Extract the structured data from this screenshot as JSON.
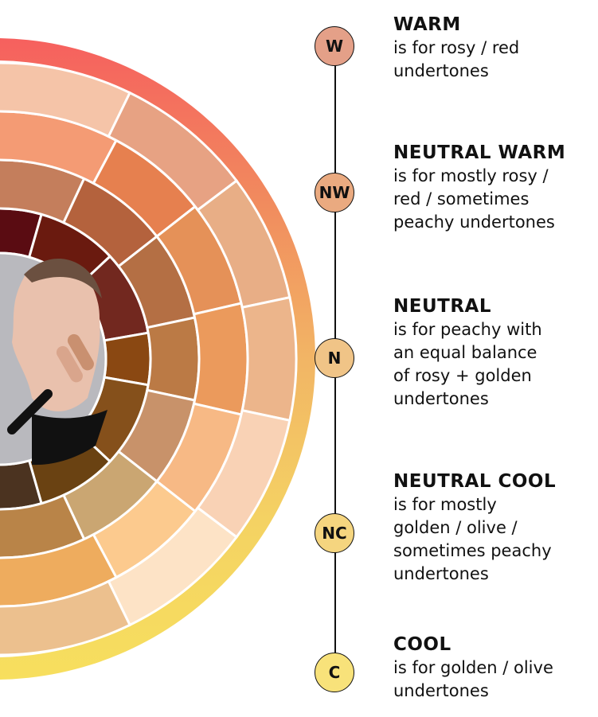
{
  "wheel": {
    "outer_ring_gradient": [
      "#f6605e",
      "#f18a5e",
      "#f2b565",
      "#f4d263",
      "#f7df5e"
    ],
    "photo_background": "#b9b9be",
    "rings": [
      [
        "#5a0c12",
        "#6a1a0f",
        "#72281f",
        "#8a4812",
        "#85501b",
        "#6a4212",
        "#4b3320"
      ],
      [
        "#c47e5c",
        "#b4623d",
        "#b46f44",
        "#bb7a45",
        "#c8926a",
        "#caa672",
        "#b98448"
      ],
      [
        "#f49b74",
        "#e6804f",
        "#e59158",
        "#eb9a5c",
        "#f7b985",
        "#fcca8e",
        "#eeac5e"
      ],
      [
        "#f5c4a8",
        "#e7a283",
        "#e8ae86",
        "#ecb58b",
        "#f9d2b5",
        "#fde3c6",
        "#ecc08e"
      ]
    ]
  },
  "undertones": [
    {
      "abbr": "W",
      "title": "WARM",
      "lines": [
        "is for rosy / red",
        "undertones"
      ],
      "color": "#e4a088"
    },
    {
      "abbr": "NW",
      "title": "NEUTRAL WARM",
      "lines": [
        "is for mostly rosy /",
        "red / sometimes",
        "peachy undertones"
      ],
      "color": "#eaaa80"
    },
    {
      "abbr": "N",
      "title": "NEUTRAL",
      "lines": [
        "is for peachy with",
        "an equal balance",
        "of rosy + golden",
        "undertones"
      ],
      "color": "#f0c487"
    },
    {
      "abbr": "NC",
      "title": "NEUTRAL COOL",
      "lines": [
        "is for mostly",
        "golden / olive /",
        "sometimes peachy",
        "undertones"
      ],
      "color": "#f5d57f"
    },
    {
      "abbr": "C",
      "title": "COOL",
      "lines": [
        "is for golden / olive",
        "undertones"
      ],
      "color": "#f8e27a"
    }
  ]
}
